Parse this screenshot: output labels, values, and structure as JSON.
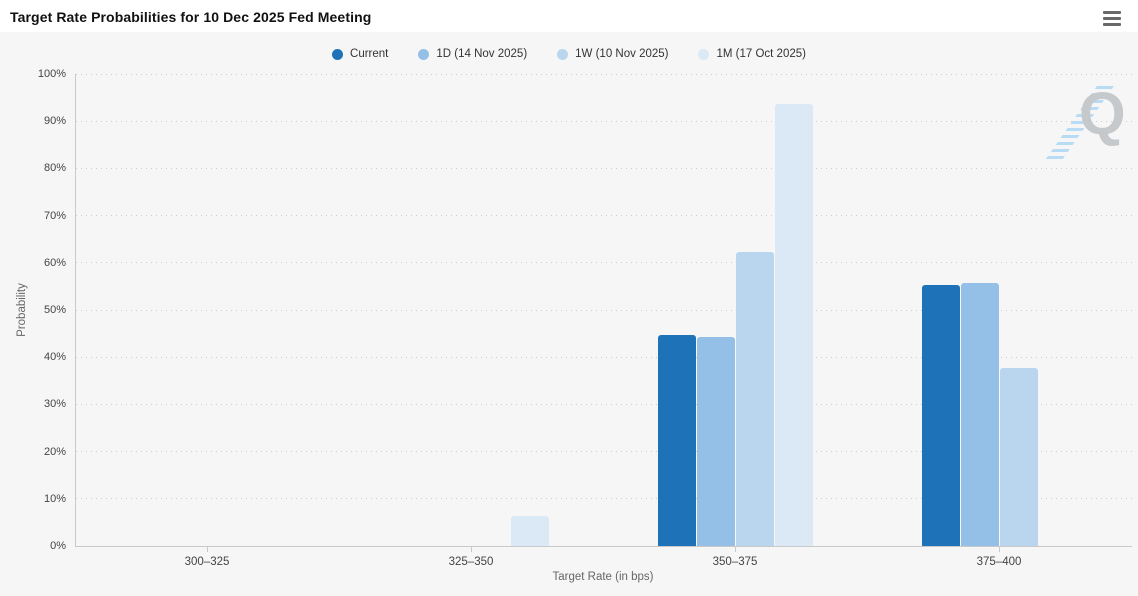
{
  "header": {
    "title": "Target Rate Probabilities for 10 Dec 2025 Fed Meeting"
  },
  "icons": {
    "menu": "hamburger-icon"
  },
  "watermark": {
    "letter": "Q"
  },
  "colors": {
    "series_current": "#1e73b8",
    "series_1d": "#94c0e8",
    "series_1w": "#b9d6ee",
    "series_1m": "#dbe9f6",
    "background": "#f6f6f6",
    "header_background": "#ffffff",
    "axis_line": "#c9c9c9",
    "grid_dots": "#cdcdcd",
    "tick_text": "#444444",
    "axis_title_text": "#666666"
  },
  "chart_data": {
    "type": "bar",
    "title": "Target Rate Probabilities for 10 Dec 2025 Fed Meeting",
    "categories": [
      "300–325",
      "325–350",
      "350–375",
      "375–400"
    ],
    "series": [
      {
        "name": "Current",
        "color": "#1e73b8",
        "values": [
          0,
          0,
          44.7,
          55.3
        ]
      },
      {
        "name": "1D (14 Nov 2025)",
        "color": "#94c0e8",
        "values": [
          0,
          0,
          44.2,
          55.8
        ]
      },
      {
        "name": "1W (10 Nov 2025)",
        "color": "#b9d6ee",
        "values": [
          0,
          0,
          62.2,
          37.8
        ]
      },
      {
        "name": "1M (17 Oct 2025)",
        "color": "#dbe9f6",
        "values": [
          0,
          6.3,
          93.7,
          0
        ]
      }
    ],
    "xlabel": "Target Rate (in bps)",
    "ylabel": "Probability",
    "ylim": [
      0,
      100
    ],
    "ytick_labels": [
      "0%",
      "10%",
      "20%",
      "30%",
      "40%",
      "50%",
      "60%",
      "70%",
      "80%",
      "90%",
      "100%"
    ],
    "grid": "dotted-horizontal",
    "legend_position": "top-center"
  }
}
